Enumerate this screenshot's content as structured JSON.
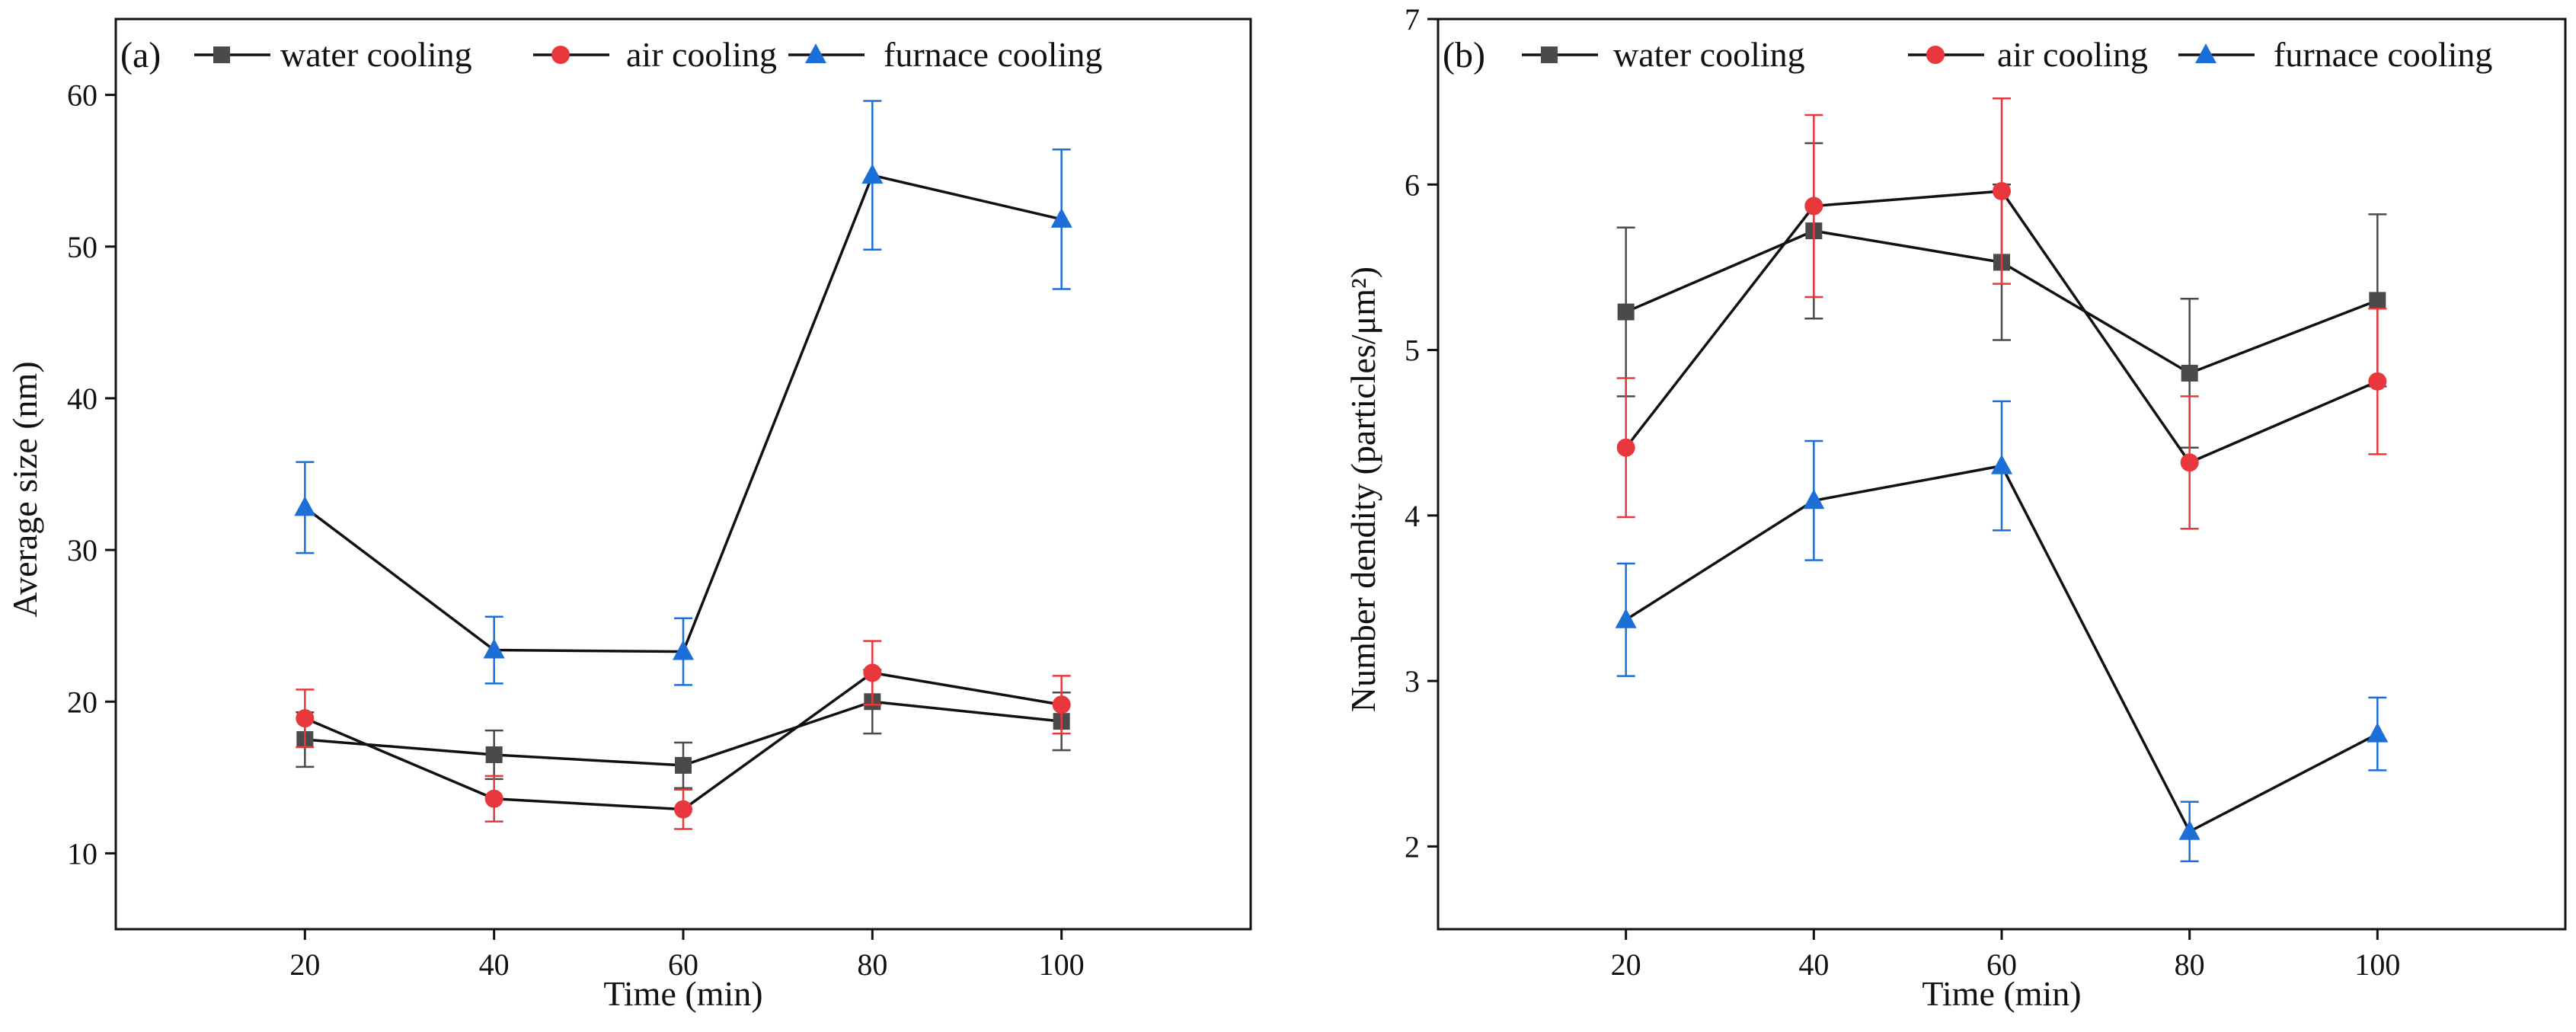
{
  "chart_data": [
    {
      "type": "line",
      "panel_label": "(a)",
      "xlabel": "Time (min)",
      "ylabel": "Average  size (nm)",
      "x": [
        20,
        40,
        60,
        80,
        100
      ],
      "x_ticks": [
        "20",
        "40",
        "60",
        "80",
        "100"
      ],
      "xlim": [
        0,
        120
      ],
      "y_ticks": [
        "10",
        "20",
        "30",
        "40",
        "50",
        "60"
      ],
      "ylim": [
        5,
        65
      ],
      "grid": false,
      "legend_position": "top",
      "series": [
        {
          "name": "water cooling",
          "marker": "square",
          "color": "#4a4a4a",
          "values": [
            17.5,
            16.5,
            15.8,
            20.0,
            18.7
          ],
          "errors": [
            1.8,
            1.6,
            1.5,
            2.1,
            1.9
          ]
        },
        {
          "name": "air cooling",
          "marker": "circle",
          "color": "#e8383d",
          "values": [
            18.9,
            13.6,
            12.9,
            21.9,
            19.8
          ],
          "errors": [
            1.9,
            1.5,
            1.3,
            2.1,
            1.9
          ]
        },
        {
          "name": "furnace cooling",
          "marker": "triangle",
          "color": "#1c6fd6",
          "values": [
            32.8,
            23.4,
            23.3,
            54.7,
            51.8
          ],
          "errors": [
            3.0,
            2.2,
            2.2,
            4.9,
            4.6
          ]
        }
      ]
    },
    {
      "type": "line",
      "panel_label": "(b)",
      "xlabel": "Time (min)",
      "ylabel": "Number dendity (particles/μm²)",
      "x": [
        20,
        40,
        60,
        80,
        100
      ],
      "x_ticks": [
        "20",
        "40",
        "60",
        "80",
        "100"
      ],
      "xlim": [
        0,
        120
      ],
      "y_ticks": [
        "2",
        "3",
        "4",
        "5",
        "6",
        "7"
      ],
      "ylim": [
        1.5,
        7
      ],
      "grid": false,
      "legend_position": "top",
      "series": [
        {
          "name": "water cooling",
          "marker": "square",
          "color": "#4a4a4a",
          "values": [
            5.23,
            5.72,
            5.53,
            4.86,
            5.3
          ],
          "errors": [
            0.51,
            0.53,
            0.47,
            0.45,
            0.52
          ]
        },
        {
          "name": "air cooling",
          "marker": "circle",
          "color": "#e8383d",
          "values": [
            4.41,
            5.87,
            5.96,
            4.32,
            4.81
          ],
          "errors": [
            0.42,
            0.55,
            0.56,
            0.4,
            0.44
          ]
        },
        {
          "name": "furnace cooling",
          "marker": "triangle",
          "color": "#1c6fd6",
          "values": [
            3.37,
            4.09,
            4.3,
            2.09,
            2.68
          ],
          "errors": [
            0.34,
            0.36,
            0.39,
            0.18,
            0.22
          ]
        }
      ]
    }
  ]
}
